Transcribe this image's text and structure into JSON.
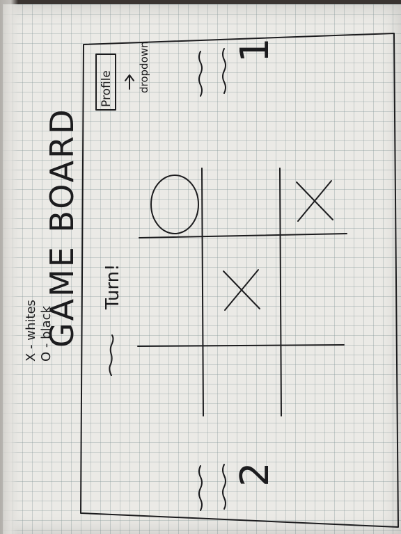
{
  "note": {
    "line1": "X - whites",
    "line2": "O - black"
  },
  "title": "GAME BOARD",
  "turn_label": "Turn!",
  "profile_button": "Profile",
  "dropdown_label": "dropdown",
  "player1_number": "1",
  "player2_number": "2",
  "board": {
    "cells": [
      [
        "",
        "",
        "O"
      ],
      [
        "",
        "X",
        ""
      ],
      [
        "",
        "",
        "X"
      ]
    ]
  }
}
